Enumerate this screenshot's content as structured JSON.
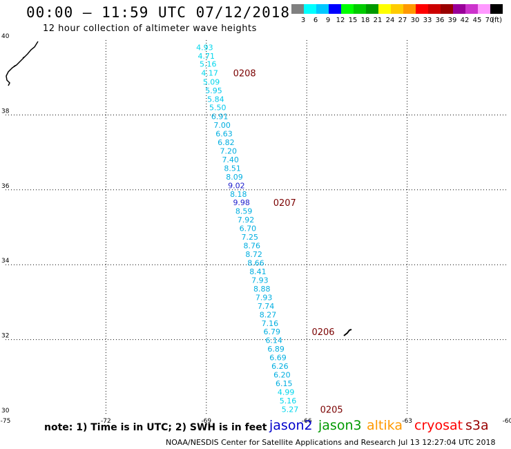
{
  "header": {
    "title": "00:00 – 11:59 UTC 07/12/2018",
    "subtitle": "12 hour collection of altimeter wave heights"
  },
  "legend": {
    "unit": "(ft)",
    "bins": [
      {
        "label": "3",
        "color": "#808080"
      },
      {
        "label": "6",
        "color": "#00ffff"
      },
      {
        "label": "9",
        "color": "#00c8ff"
      },
      {
        "label": "12",
        "color": "#0000ff"
      },
      {
        "label": "15",
        "color": "#00ff00"
      },
      {
        "label": "18",
        "color": "#00cc00"
      },
      {
        "label": "21",
        "color": "#009900"
      },
      {
        "label": "24",
        "color": "#ffff00"
      },
      {
        "label": "27",
        "color": "#ffcc00"
      },
      {
        "label": "30",
        "color": "#ff9900"
      },
      {
        "label": "33",
        "color": "#ff0000"
      },
      {
        "label": "36",
        "color": "#cc0000"
      },
      {
        "label": "39",
        "color": "#990000"
      },
      {
        "label": "42",
        "color": "#990099"
      },
      {
        "label": "45",
        "color": "#cc33cc"
      },
      {
        "label": "70",
        "color": "#ff99ff"
      },
      {
        "label": "",
        "color": "#000000"
      }
    ]
  },
  "axes": {
    "lon_ticks": [
      {
        "value": -75,
        "label": "-75"
      },
      {
        "value": -72,
        "label": "-72"
      },
      {
        "value": -69,
        "label": "-69"
      },
      {
        "value": -66,
        "label": "-66"
      },
      {
        "value": -63,
        "label": "-63"
      },
      {
        "value": -60,
        "label": "-60"
      }
    ],
    "lat_ticks": [
      {
        "value": 30,
        "label": "30"
      },
      {
        "value": 32,
        "label": "32"
      },
      {
        "value": 34,
        "label": "34"
      },
      {
        "value": 36,
        "label": "36"
      },
      {
        "value": 38,
        "label": "38"
      },
      {
        "value": 40,
        "label": "40"
      }
    ],
    "lon_range": [
      -75,
      -60
    ],
    "lat_range": [
      30,
      40
    ]
  },
  "chart_data": {
    "type": "scatter",
    "title": "12 hour collection of altimeter wave heights",
    "xlabel": "",
    "ylabel": "",
    "xlim": [
      -75,
      -60
    ],
    "ylim": [
      30,
      40
    ],
    "grid": true,
    "series": [
      {
        "name": "",
        "color_bins_ft": "per legend",
        "points": [
          {
            "lon": -69.05,
            "lat": 39.81,
            "swh": "4.93",
            "color": "#00d6ec"
          },
          {
            "lon": -69.0,
            "lat": 39.58,
            "swh": "4.71",
            "color": "#00d6ec"
          },
          {
            "lon": -68.95,
            "lat": 39.36,
            "swh": "5.16",
            "color": "#00d6ec"
          },
          {
            "lon": -68.9,
            "lat": 39.12,
            "swh": "4.17",
            "color": "#00d6ec"
          },
          {
            "lon": -68.85,
            "lat": 38.88,
            "swh": "5.09",
            "color": "#00d6ec"
          },
          {
            "lon": -68.78,
            "lat": 38.65,
            "swh": "5.95",
            "color": "#00c8ec"
          },
          {
            "lon": -68.72,
            "lat": 38.42,
            "swh": "5.84",
            "color": "#00c8ec"
          },
          {
            "lon": -68.66,
            "lat": 38.2,
            "swh": "5.50",
            "color": "#00c8ec"
          },
          {
            "lon": -68.6,
            "lat": 37.96,
            "swh": "6.91",
            "color": "#00aee0"
          },
          {
            "lon": -68.53,
            "lat": 37.73,
            "swh": "7.00",
            "color": "#00aee0"
          },
          {
            "lon": -68.47,
            "lat": 37.5,
            "swh": "6.63",
            "color": "#00aee0"
          },
          {
            "lon": -68.41,
            "lat": 37.27,
            "swh": "6.82",
            "color": "#00aee0"
          },
          {
            "lon": -68.34,
            "lat": 37.04,
            "swh": "7.20",
            "color": "#00aee0"
          },
          {
            "lon": -68.28,
            "lat": 36.81,
            "swh": "7.40",
            "color": "#00aee0"
          },
          {
            "lon": -68.22,
            "lat": 36.58,
            "swh": "8.51",
            "color": "#00aee0"
          },
          {
            "lon": -68.16,
            "lat": 36.35,
            "swh": "8.09",
            "color": "#00aee0"
          },
          {
            "lon": -68.1,
            "lat": 36.12,
            "swh": "9.02",
            "color": "#1a1acc"
          },
          {
            "lon": -68.04,
            "lat": 35.89,
            "swh": "8.18",
            "color": "#00aee0"
          },
          {
            "lon": -67.95,
            "lat": 35.66,
            "swh": "9.98",
            "color": "#1a1acc"
          },
          {
            "lon": -67.88,
            "lat": 35.43,
            "swh": "8.59",
            "color": "#00aee0"
          },
          {
            "lon": -67.82,
            "lat": 35.2,
            "swh": "7.92",
            "color": "#00aee0"
          },
          {
            "lon": -67.76,
            "lat": 34.97,
            "swh": "6.70",
            "color": "#00aee0"
          },
          {
            "lon": -67.7,
            "lat": 34.74,
            "swh": "7.25",
            "color": "#00aee0"
          },
          {
            "lon": -67.64,
            "lat": 34.51,
            "swh": "8.76",
            "color": "#00aee0"
          },
          {
            "lon": -67.58,
            "lat": 34.28,
            "swh": "8.72",
            "color": "#00aee0"
          },
          {
            "lon": -67.52,
            "lat": 34.05,
            "swh": "8.66",
            "color": "#00aee0"
          },
          {
            "lon": -67.46,
            "lat": 33.82,
            "swh": "8.41",
            "color": "#00aee0"
          },
          {
            "lon": -67.4,
            "lat": 33.59,
            "swh": "7.93",
            "color": "#00aee0"
          },
          {
            "lon": -67.34,
            "lat": 33.36,
            "swh": "8.88",
            "color": "#00aee0"
          },
          {
            "lon": -67.28,
            "lat": 33.13,
            "swh": "7.93",
            "color": "#00aee0"
          },
          {
            "lon": -67.22,
            "lat": 32.9,
            "swh": "7.74",
            "color": "#00aee0"
          },
          {
            "lon": -67.16,
            "lat": 32.67,
            "swh": "8.27",
            "color": "#00aee0"
          },
          {
            "lon": -67.1,
            "lat": 32.44,
            "swh": "7.16",
            "color": "#00aee0"
          },
          {
            "lon": -67.04,
            "lat": 32.21,
            "swh": "6.79",
            "color": "#00aee0"
          },
          {
            "lon": -66.98,
            "lat": 31.98,
            "swh": "6.14",
            "color": "#00aee0"
          },
          {
            "lon": -66.92,
            "lat": 31.75,
            "swh": "6.89",
            "color": "#00aee0"
          },
          {
            "lon": -66.86,
            "lat": 31.52,
            "swh": "6.69",
            "color": "#00aee0"
          },
          {
            "lon": -66.8,
            "lat": 31.29,
            "swh": "6.26",
            "color": "#00aee0"
          },
          {
            "lon": -66.74,
            "lat": 31.06,
            "swh": "6.20",
            "color": "#00aee0"
          },
          {
            "lon": -66.68,
            "lat": 30.83,
            "swh": "6.15",
            "color": "#00aee0"
          },
          {
            "lon": -66.62,
            "lat": 30.6,
            "swh": "4.99",
            "color": "#00d6ec"
          },
          {
            "lon": -66.56,
            "lat": 30.37,
            "swh": "5.16",
            "color": "#00d6ec"
          },
          {
            "lon": -66.5,
            "lat": 30.14,
            "swh": "5.27",
            "color": "#00d6ec"
          }
        ]
      }
    ],
    "time_labels": [
      {
        "label": "0208",
        "lon": -68.2,
        "lat": 39.12,
        "color": "#7a0000"
      },
      {
        "label": "0207",
        "lon": -67.0,
        "lat": 35.66,
        "color": "#7a0000"
      },
      {
        "label": "0206",
        "lon": -65.85,
        "lat": 32.21,
        "color": "#7a0000"
      },
      {
        "label": "0205",
        "lon": -65.6,
        "lat": 30.14,
        "color": "#7a0000"
      }
    ]
  },
  "footer": {
    "note": "note: 1) Time is in UTC; 2) SWH is in feet",
    "satellites": [
      {
        "label": "jason2",
        "color": "#0000cc"
      },
      {
        "label": "jason3",
        "color": "#009900"
      },
      {
        "label": "altika",
        "color": "#ff9900"
      },
      {
        "label": "cryosat",
        "color": "#ff0000"
      },
      {
        "label": "s3a",
        "color": "#990000"
      }
    ],
    "credit": "NOAA/NESDIS Center for Satellite Applications and Research",
    "generated": "Jul 13 12:27:04 UTC 2018"
  }
}
